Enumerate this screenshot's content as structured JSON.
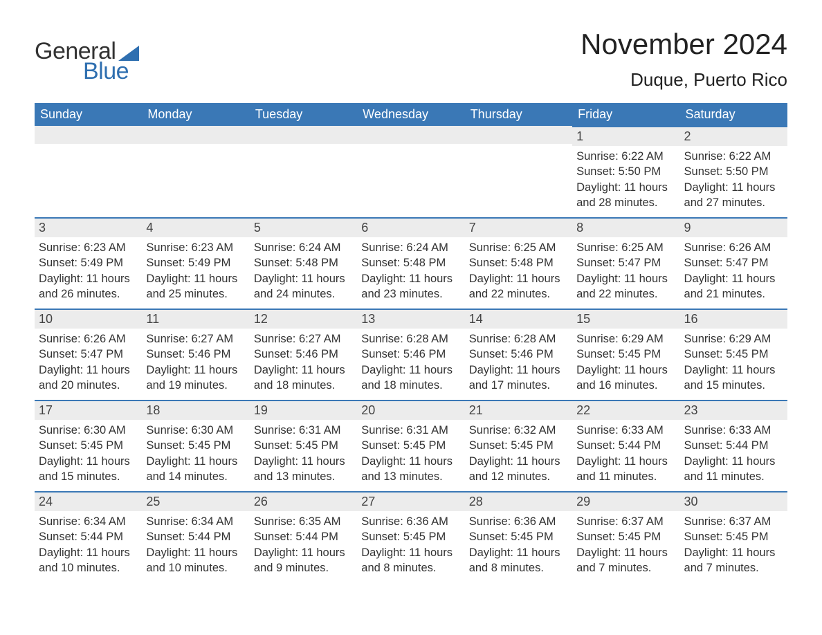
{
  "colors": {
    "header_bg": "#3a78b6",
    "header_text": "#ffffff",
    "day_header_bg": "#ececec",
    "day_header_border": "#3a78b6",
    "body_text": "#333333",
    "logo_blue": "#2f6fb0",
    "page_bg": "#ffffff"
  },
  "logo": {
    "text_top": "General",
    "text_bottom": "Blue"
  },
  "title": "November 2024",
  "location": "Duque, Puerto Rico",
  "weekdays": [
    "Sunday",
    "Monday",
    "Tuesday",
    "Wednesday",
    "Thursday",
    "Friday",
    "Saturday"
  ],
  "labels": {
    "sunrise": "Sunrise",
    "sunset": "Sunset",
    "daylight": "Daylight"
  },
  "weeks": [
    [
      null,
      null,
      null,
      null,
      null,
      {
        "day": "1",
        "sunrise": "6:22 AM",
        "sunset": "5:50 PM",
        "daylight": "11 hours and 28 minutes."
      },
      {
        "day": "2",
        "sunrise": "6:22 AM",
        "sunset": "5:50 PM",
        "daylight": "11 hours and 27 minutes."
      }
    ],
    [
      {
        "day": "3",
        "sunrise": "6:23 AM",
        "sunset": "5:49 PM",
        "daylight": "11 hours and 26 minutes."
      },
      {
        "day": "4",
        "sunrise": "6:23 AM",
        "sunset": "5:49 PM",
        "daylight": "11 hours and 25 minutes."
      },
      {
        "day": "5",
        "sunrise": "6:24 AM",
        "sunset": "5:48 PM",
        "daylight": "11 hours and 24 minutes."
      },
      {
        "day": "6",
        "sunrise": "6:24 AM",
        "sunset": "5:48 PM",
        "daylight": "11 hours and 23 minutes."
      },
      {
        "day": "7",
        "sunrise": "6:25 AM",
        "sunset": "5:48 PM",
        "daylight": "11 hours and 22 minutes."
      },
      {
        "day": "8",
        "sunrise": "6:25 AM",
        "sunset": "5:47 PM",
        "daylight": "11 hours and 22 minutes."
      },
      {
        "day": "9",
        "sunrise": "6:26 AM",
        "sunset": "5:47 PM",
        "daylight": "11 hours and 21 minutes."
      }
    ],
    [
      {
        "day": "10",
        "sunrise": "6:26 AM",
        "sunset": "5:47 PM",
        "daylight": "11 hours and 20 minutes."
      },
      {
        "day": "11",
        "sunrise": "6:27 AM",
        "sunset": "5:46 PM",
        "daylight": "11 hours and 19 minutes."
      },
      {
        "day": "12",
        "sunrise": "6:27 AM",
        "sunset": "5:46 PM",
        "daylight": "11 hours and 18 minutes."
      },
      {
        "day": "13",
        "sunrise": "6:28 AM",
        "sunset": "5:46 PM",
        "daylight": "11 hours and 18 minutes."
      },
      {
        "day": "14",
        "sunrise": "6:28 AM",
        "sunset": "5:46 PM",
        "daylight": "11 hours and 17 minutes."
      },
      {
        "day": "15",
        "sunrise": "6:29 AM",
        "sunset": "5:45 PM",
        "daylight": "11 hours and 16 minutes."
      },
      {
        "day": "16",
        "sunrise": "6:29 AM",
        "sunset": "5:45 PM",
        "daylight": "11 hours and 15 minutes."
      }
    ],
    [
      {
        "day": "17",
        "sunrise": "6:30 AM",
        "sunset": "5:45 PM",
        "daylight": "11 hours and 15 minutes."
      },
      {
        "day": "18",
        "sunrise": "6:30 AM",
        "sunset": "5:45 PM",
        "daylight": "11 hours and 14 minutes."
      },
      {
        "day": "19",
        "sunrise": "6:31 AM",
        "sunset": "5:45 PM",
        "daylight": "11 hours and 13 minutes."
      },
      {
        "day": "20",
        "sunrise": "6:31 AM",
        "sunset": "5:45 PM",
        "daylight": "11 hours and 13 minutes."
      },
      {
        "day": "21",
        "sunrise": "6:32 AM",
        "sunset": "5:45 PM",
        "daylight": "11 hours and 12 minutes."
      },
      {
        "day": "22",
        "sunrise": "6:33 AM",
        "sunset": "5:44 PM",
        "daylight": "11 hours and 11 minutes."
      },
      {
        "day": "23",
        "sunrise": "6:33 AM",
        "sunset": "5:44 PM",
        "daylight": "11 hours and 11 minutes."
      }
    ],
    [
      {
        "day": "24",
        "sunrise": "6:34 AM",
        "sunset": "5:44 PM",
        "daylight": "11 hours and 10 minutes."
      },
      {
        "day": "25",
        "sunrise": "6:34 AM",
        "sunset": "5:44 PM",
        "daylight": "11 hours and 10 minutes."
      },
      {
        "day": "26",
        "sunrise": "6:35 AM",
        "sunset": "5:44 PM",
        "daylight": "11 hours and 9 minutes."
      },
      {
        "day": "27",
        "sunrise": "6:36 AM",
        "sunset": "5:45 PM",
        "daylight": "11 hours and 8 minutes."
      },
      {
        "day": "28",
        "sunrise": "6:36 AM",
        "sunset": "5:45 PM",
        "daylight": "11 hours and 8 minutes."
      },
      {
        "day": "29",
        "sunrise": "6:37 AM",
        "sunset": "5:45 PM",
        "daylight": "11 hours and 7 minutes."
      },
      {
        "day": "30",
        "sunrise": "6:37 AM",
        "sunset": "5:45 PM",
        "daylight": "11 hours and 7 minutes."
      }
    ]
  ]
}
